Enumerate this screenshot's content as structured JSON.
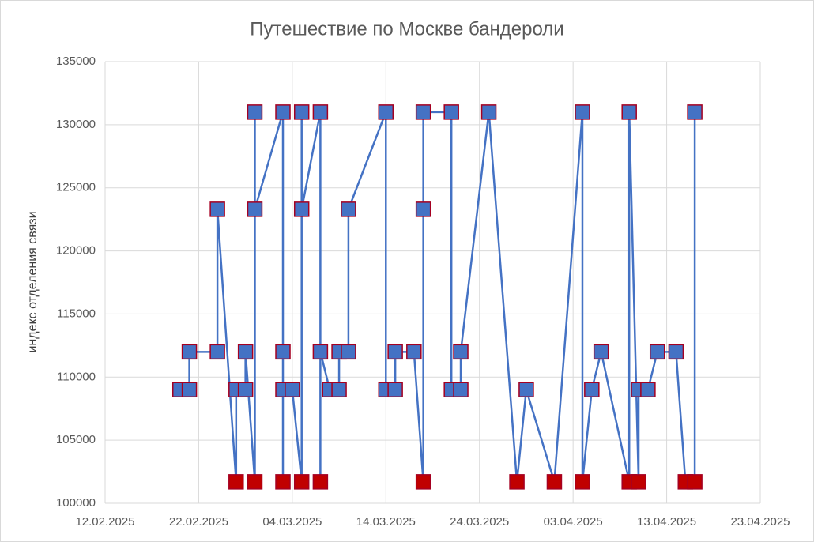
{
  "chart_data": {
    "type": "line",
    "title": "Путешествие по Москве бандероли",
    "y_label": "индекс отделения связи",
    "x": [
      "20.02.2025",
      "21.02.2025",
      "21.02.2025",
      "24.02.2025",
      "24.02.2025",
      "26.02.2025",
      "26.02.2025",
      "27.02.2025",
      "27.02.2025",
      "28.02.2025",
      "28.02.2025",
      "28.02.2025",
      "03.03.2025",
      "03.03.2025",
      "03.03.2025",
      "03.03.2025",
      "04.03.2025",
      "05.03.2025",
      "05.03.2025",
      "05.03.2025",
      "07.03.2025",
      "07.03.2025",
      "07.03.2025",
      "08.03.2025",
      "09.03.2025",
      "09.03.2025",
      "10.03.2025",
      "10.03.2025",
      "14.03.2025",
      "14.03.2025",
      "15.03.2025",
      "15.03.2025",
      "17.03.2025",
      "18.03.2025",
      "18.03.2025",
      "18.03.2025",
      "21.03.2025",
      "21.03.2025",
      "22.03.2025",
      "22.03.2025",
      "25.03.2025",
      "28.03.2025",
      "29.03.2025",
      "01.04.2025",
      "04.04.2025",
      "04.04.2025",
      "05.04.2025",
      "06.04.2025",
      "09.04.2025",
      "09.04.2025",
      "10.04.2025",
      "10.04.2025",
      "11.04.2025",
      "12.04.2025",
      "14.04.2025",
      "15.04.2025",
      "16.04.2025",
      "16.04.2025"
    ],
    "series": [
      {
        "color": "#4472c4",
        "values": [
          109000,
          109000,
          112000,
          112000,
          123300,
          101700,
          109000,
          109000,
          112000,
          101700,
          131000,
          123300,
          131000,
          101700,
          112000,
          109000,
          109000,
          101700,
          131000,
          123300,
          131000,
          101700,
          112000,
          109000,
          109000,
          112000,
          112000,
          123300,
          131000,
          109000,
          109000,
          112000,
          112000,
          101700,
          123300,
          131000,
          131000,
          109000,
          109000,
          112000,
          131000,
          101700,
          109000,
          101700,
          131000,
          101700,
          109000,
          112000,
          101700,
          131000,
          101700,
          109000,
          109000,
          112000,
          112000,
          101700,
          101700,
          131000
        ],
        "marker_colors": [
          "#4472c4",
          "#4472c4",
          "#4472c4",
          "#4472c4",
          "#4472c4",
          "#c00000",
          "#4472c4",
          "#4472c4",
          "#4472c4",
          "#c00000",
          "#4472c4",
          "#4472c4",
          "#4472c4",
          "#c00000",
          "#4472c4",
          "#4472c4",
          "#4472c4",
          "#c00000",
          "#4472c4",
          "#4472c4",
          "#4472c4",
          "#c00000",
          "#4472c4",
          "#4472c4",
          "#4472c4",
          "#4472c4",
          "#4472c4",
          "#4472c4",
          "#4472c4",
          "#4472c4",
          "#4472c4",
          "#4472c4",
          "#4472c4",
          "#c00000",
          "#4472c4",
          "#4472c4",
          "#4472c4",
          "#4472c4",
          "#4472c4",
          "#4472c4",
          "#4472c4",
          "#c00000",
          "#4472c4",
          "#c00000",
          "#4472c4",
          "#c00000",
          "#4472c4",
          "#4472c4",
          "#c00000",
          "#4472c4",
          "#c00000",
          "#4472c4",
          "#4472c4",
          "#4472c4",
          "#4472c4",
          "#c00000",
          "#c00000",
          "#4472c4"
        ],
        "marker_edge": "#a50021"
      }
    ],
    "xlim": [
      "12.02.2025",
      "23.04.2025"
    ],
    "xticks": [
      "12.02.2025",
      "22.02.2025",
      "04.03.2025",
      "14.03.2025",
      "24.03.2025",
      "03.04.2025",
      "13.04.2025",
      "23.04.2025"
    ],
    "ylim": [
      100000,
      135000
    ],
    "yticks": [
      100000,
      105000,
      110000,
      115000,
      120000,
      125000,
      130000,
      135000
    ],
    "grid": true
  }
}
